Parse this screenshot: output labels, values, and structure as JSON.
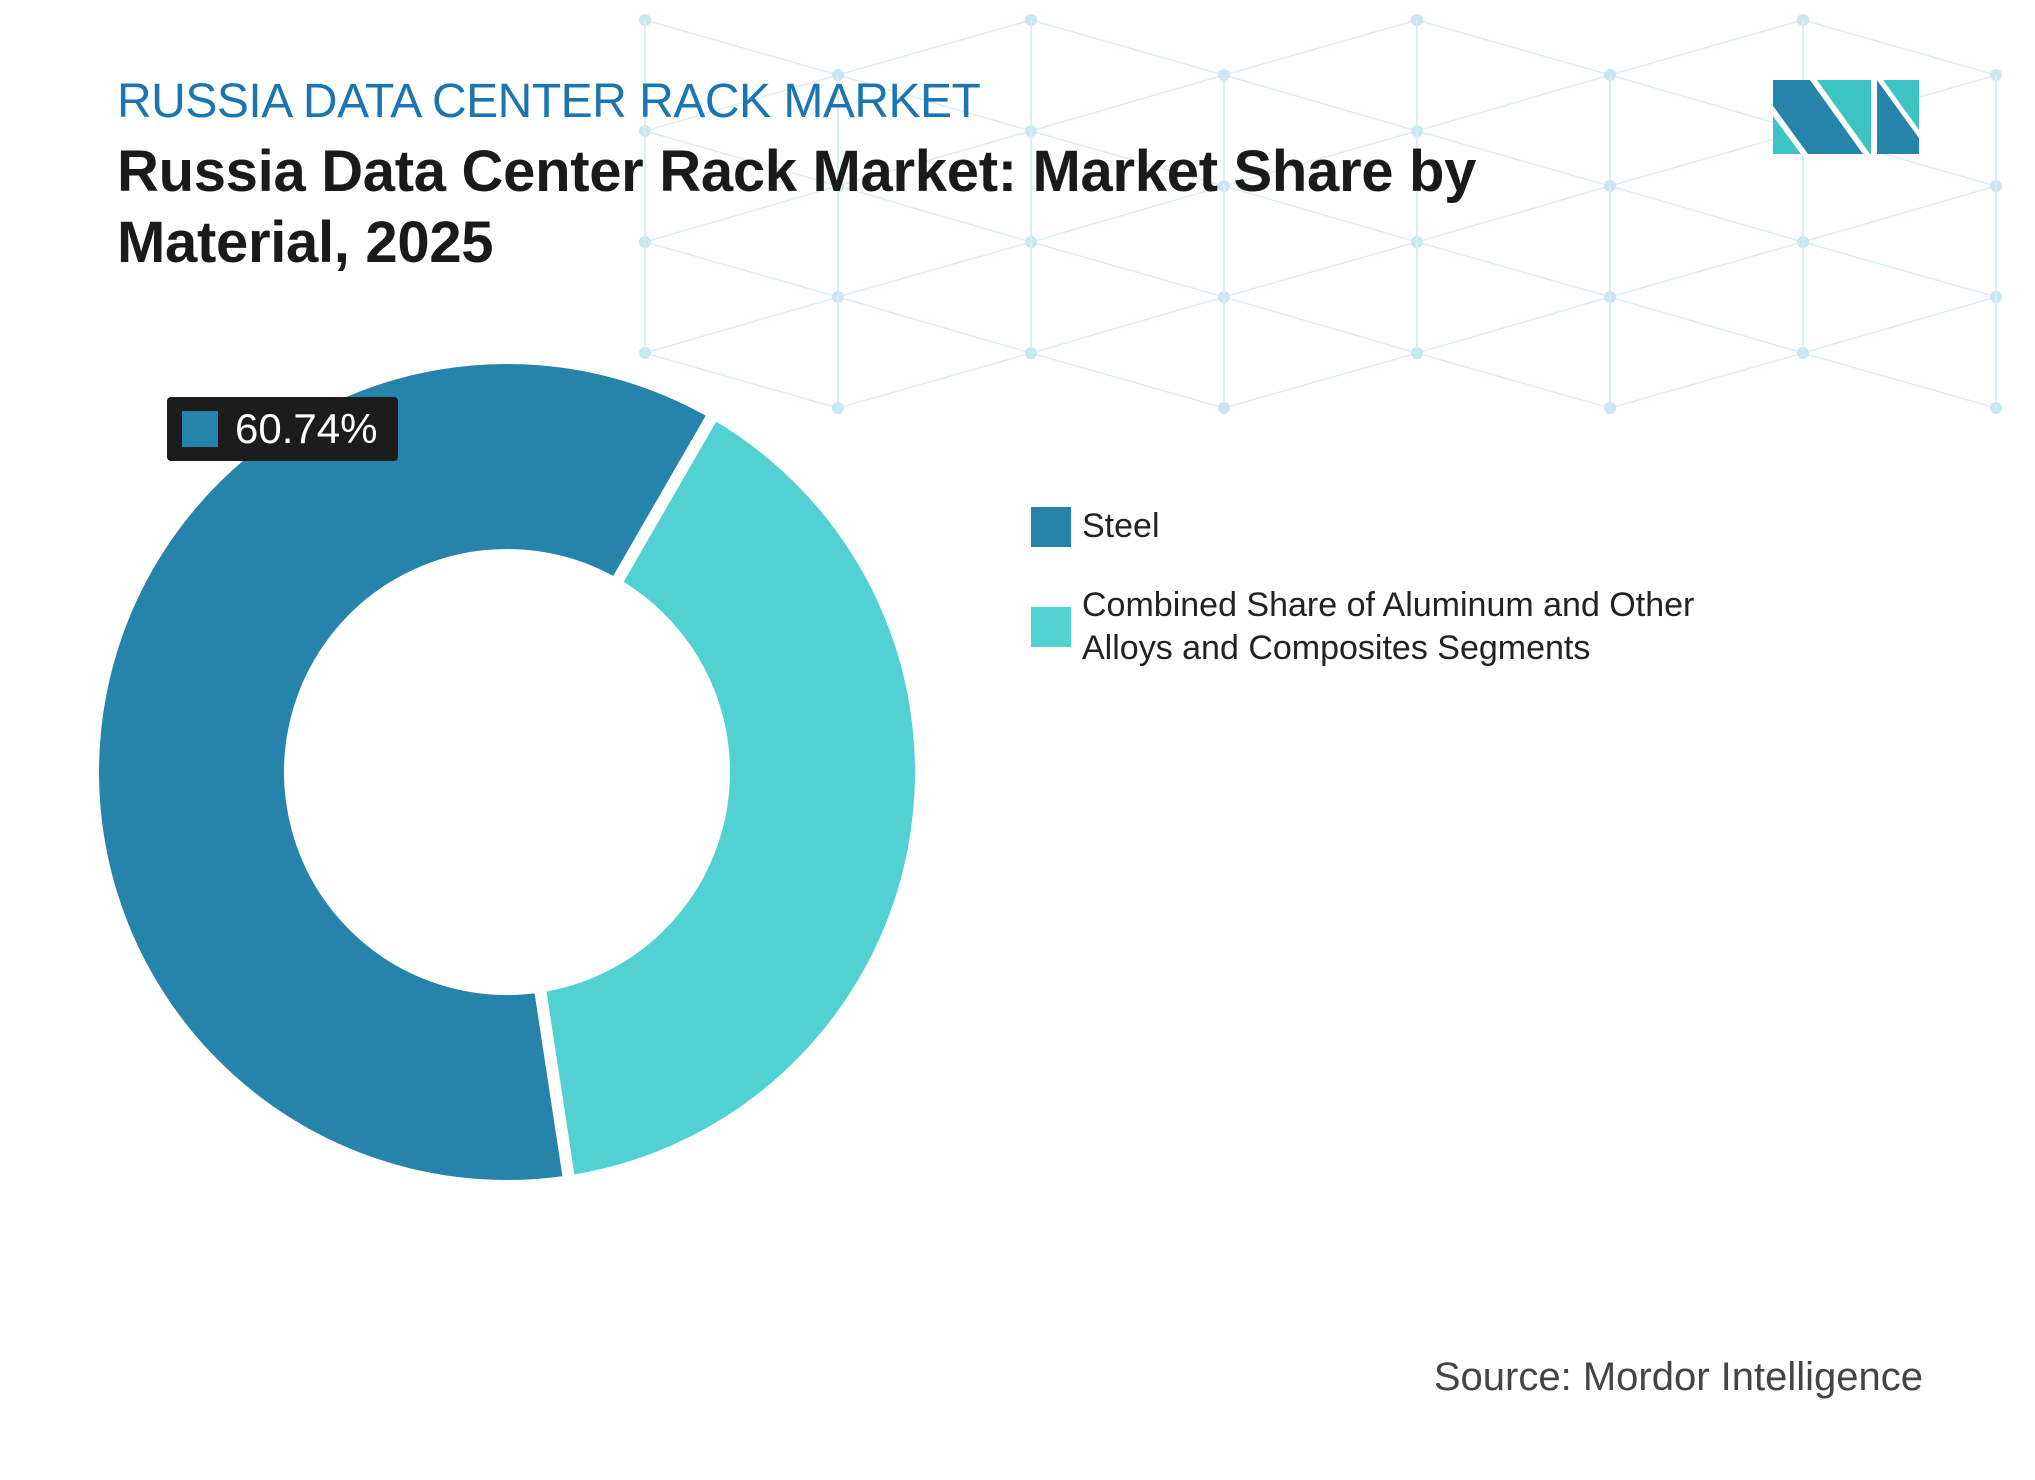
{
  "header": {
    "kicker": "RUSSIA DATA CENTER RACK MARKET",
    "title": "Russia Data Center Rack Market: Market Share by Material, 2025"
  },
  "logo": {
    "name": "mordor-intelligence-logo",
    "colors": [
      "#2683a9",
      "#3cc4c4"
    ]
  },
  "chart_data": {
    "type": "pie",
    "style": "donut",
    "title": "Russia Data Center Rack Market: Market Share by Material, 2025",
    "categories": [
      "Steel",
      "Combined Share of Aluminum and Other Alloys and Composites Segments"
    ],
    "values": [
      60.74,
      39.26
    ],
    "colors": [
      "#2683a9",
      "#52d1d2"
    ],
    "data_labels": [
      {
        "category": "Steel",
        "text": "60.74%"
      }
    ],
    "legend_position": "right"
  },
  "source": "Source: Mordor Intelligence"
}
